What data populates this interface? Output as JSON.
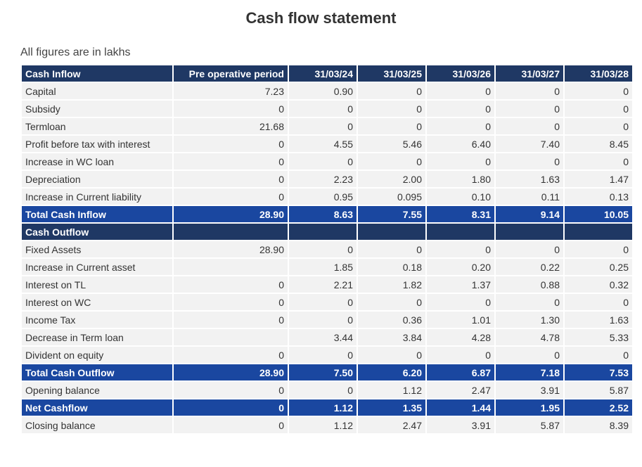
{
  "title": "Cash flow statement",
  "note": "All figures are in lakhs",
  "colors": {
    "header": "#1f3864",
    "total": "#1a47a0",
    "row": "#f2f2f2"
  },
  "table": {
    "header": [
      "Cash Inflow",
      "Pre operative period",
      "31/03/24",
      "31/03/25",
      "31/03/26",
      "31/03/27",
      "31/03/28"
    ],
    "inflow_rows": [
      [
        "Capital",
        "7.23",
        "0.90",
        "0",
        "0",
        "0",
        "0"
      ],
      [
        "Subsidy",
        "0",
        "0",
        "0",
        "0",
        "0",
        "0"
      ],
      [
        "Termloan",
        "21.68",
        "0",
        "0",
        "0",
        "0",
        "0"
      ],
      [
        "Profit before tax with interest",
        "0",
        "4.55",
        "5.46",
        "6.40",
        "7.40",
        "8.45"
      ],
      [
        "Increase in WC loan",
        "0",
        "0",
        "0",
        "0",
        "0",
        "0"
      ],
      [
        "Depreciation",
        "0",
        "2.23",
        "2.00",
        "1.80",
        "1.63",
        "1.47"
      ],
      [
        "Increase in Current liability",
        "0",
        "0.95",
        "0.095",
        "0.10",
        "0.11",
        "0.13"
      ]
    ],
    "total_inflow": [
      "Total Cash Inflow",
      "28.90",
      "8.63",
      "7.55",
      "8.31",
      "9.14",
      "10.05"
    ],
    "outflow_header": [
      "Cash Outflow",
      "",
      "",
      "",
      "",
      "",
      ""
    ],
    "outflow_rows": [
      [
        "Fixed Assets",
        "28.90",
        "0",
        "0",
        "0",
        "0",
        "0"
      ],
      [
        "Increase in Current asset",
        "",
        "1.85",
        "0.18",
        "0.20",
        "0.22",
        "0.25"
      ],
      [
        "Interest on TL",
        "0",
        "2.21",
        "1.82",
        "1.37",
        "0.88",
        "0.32"
      ],
      [
        "Interest on WC",
        "0",
        "0",
        "0",
        "0",
        "0",
        "0"
      ],
      [
        "Income Tax",
        "0",
        "0",
        "0.36",
        "1.01",
        "1.30",
        "1.63"
      ],
      [
        "Decrease in Term loan",
        "",
        "3.44",
        "3.84",
        "4.28",
        "4.78",
        "5.33"
      ],
      [
        "Divident on equity",
        "0",
        "0",
        "0",
        "0",
        "0",
        "0"
      ]
    ],
    "total_outflow": [
      "Total Cash Outflow",
      "28.90",
      "7.50",
      "6.20",
      "6.87",
      "7.18",
      "7.53"
    ],
    "opening_balance": [
      "Opening balance",
      "0",
      "0",
      "1.12",
      "2.47",
      "3.91",
      "5.87"
    ],
    "net_cashflow": [
      "Net Cashflow",
      "0",
      "1.12",
      "1.35",
      "1.44",
      "1.95",
      "2.52"
    ],
    "closing_balance": [
      "Closing balance",
      "0",
      "1.12",
      "2.47",
      "3.91",
      "5.87",
      "8.39"
    ]
  }
}
